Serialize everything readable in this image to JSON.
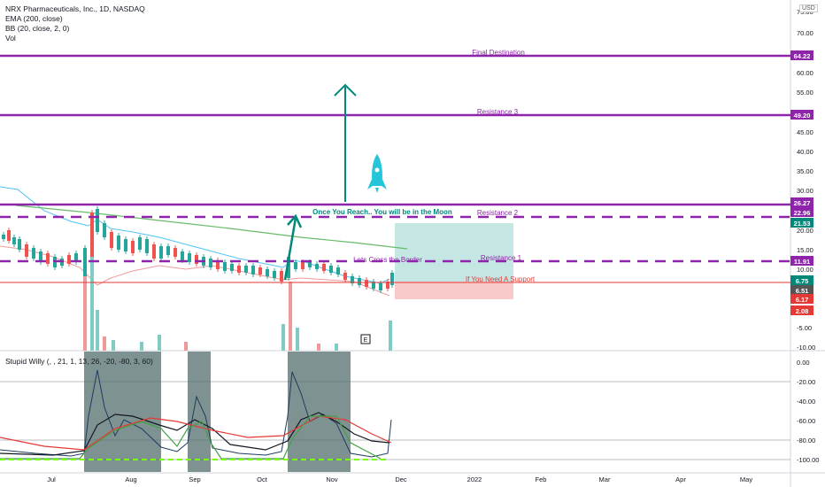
{
  "header": {
    "symbol_line": "NRX Pharmaceuticals, Inc., 1D, NASDAQ",
    "indicators": [
      "EMA (200, close)",
      "BB (20, close, 2, 0)",
      "Vol"
    ],
    "currency": "USD"
  },
  "oscillator": {
    "title": "Stupid Willy (, , 21, 1, 13, 26, -20, -80, 3, 60)"
  },
  "colors": {
    "purple": "#8e24aa",
    "red": "#e53935",
    "teal": "#00897b",
    "green_zone": "#b2dfdb",
    "red_zone": "#f8bbbb",
    "ema": "#66bb6a",
    "bb": "#4fc3f7",
    "grey_box": "#546e6e"
  },
  "chart_data": [
    {
      "type": "line",
      "title": "NRX Pharmaceuticals, Inc., 1D, NASDAQ",
      "y_scale": "log",
      "y_ticks": [
        "75.00",
        "70.00",
        "65.00",
        "60.00",
        "55.00",
        "50.00",
        "45.00",
        "40.00",
        "35.00",
        "30.00",
        "25.00",
        "20.00",
        "15.00",
        "10.00",
        "5.00",
        "-5.00",
        "-10.00"
      ],
      "x_ticks": [
        "Jul",
        "Aug",
        "Sep",
        "Oct",
        "Nov",
        "Dec",
        "2022",
        "Feb",
        "Mar",
        "Apr",
        "May"
      ],
      "price_labels": [
        {
          "value": "64.22",
          "color": "#8e24aa"
        },
        {
          "value": "49.20",
          "color": "#8e24aa"
        },
        {
          "value": "26.27",
          "color": "#8e24aa"
        },
        {
          "value": "22.96",
          "color": "#8e24aa"
        },
        {
          "value": "21.53",
          "color": "#00897b"
        },
        {
          "value": "11.91",
          "color": "#8e24aa"
        },
        {
          "value": "6.75",
          "color": "#00897b"
        },
        {
          "value": "6.51",
          "color": "#555555"
        },
        {
          "value": "6.17",
          "color": "#e53935"
        },
        {
          "value": "2.08",
          "color": "#e53935"
        }
      ],
      "levels": [
        {
          "name": "Final Destination",
          "value": 64.22,
          "style": "solid"
        },
        {
          "name": "Resistance 3",
          "value": 49.2,
          "style": "solid"
        },
        {
          "name": "",
          "value": 26.27,
          "style": "solid"
        },
        {
          "name": "Resistance 2",
          "value": 22.96,
          "style": "dashed"
        },
        {
          "name": "Resistance 1",
          "value": 11.91,
          "style": "dashed"
        },
        {
          "name": "If You Need A Support",
          "value": 6.75,
          "style": "solid-red"
        }
      ],
      "annotations": [
        "Once You Reach.. You will be in the Moon",
        "Lets Cross the Border"
      ],
      "earnings_marker": "E"
    },
    {
      "type": "line",
      "title": "Stupid Willy (, , 21, 1, 13, 26, -20, -80, 3, 60)",
      "y_ticks": [
        "0.00",
        "-20.00",
        "-40.00",
        "-60.00",
        "-80.00",
        "-100.00"
      ],
      "ylim": [
        -100,
        0
      ]
    }
  ]
}
